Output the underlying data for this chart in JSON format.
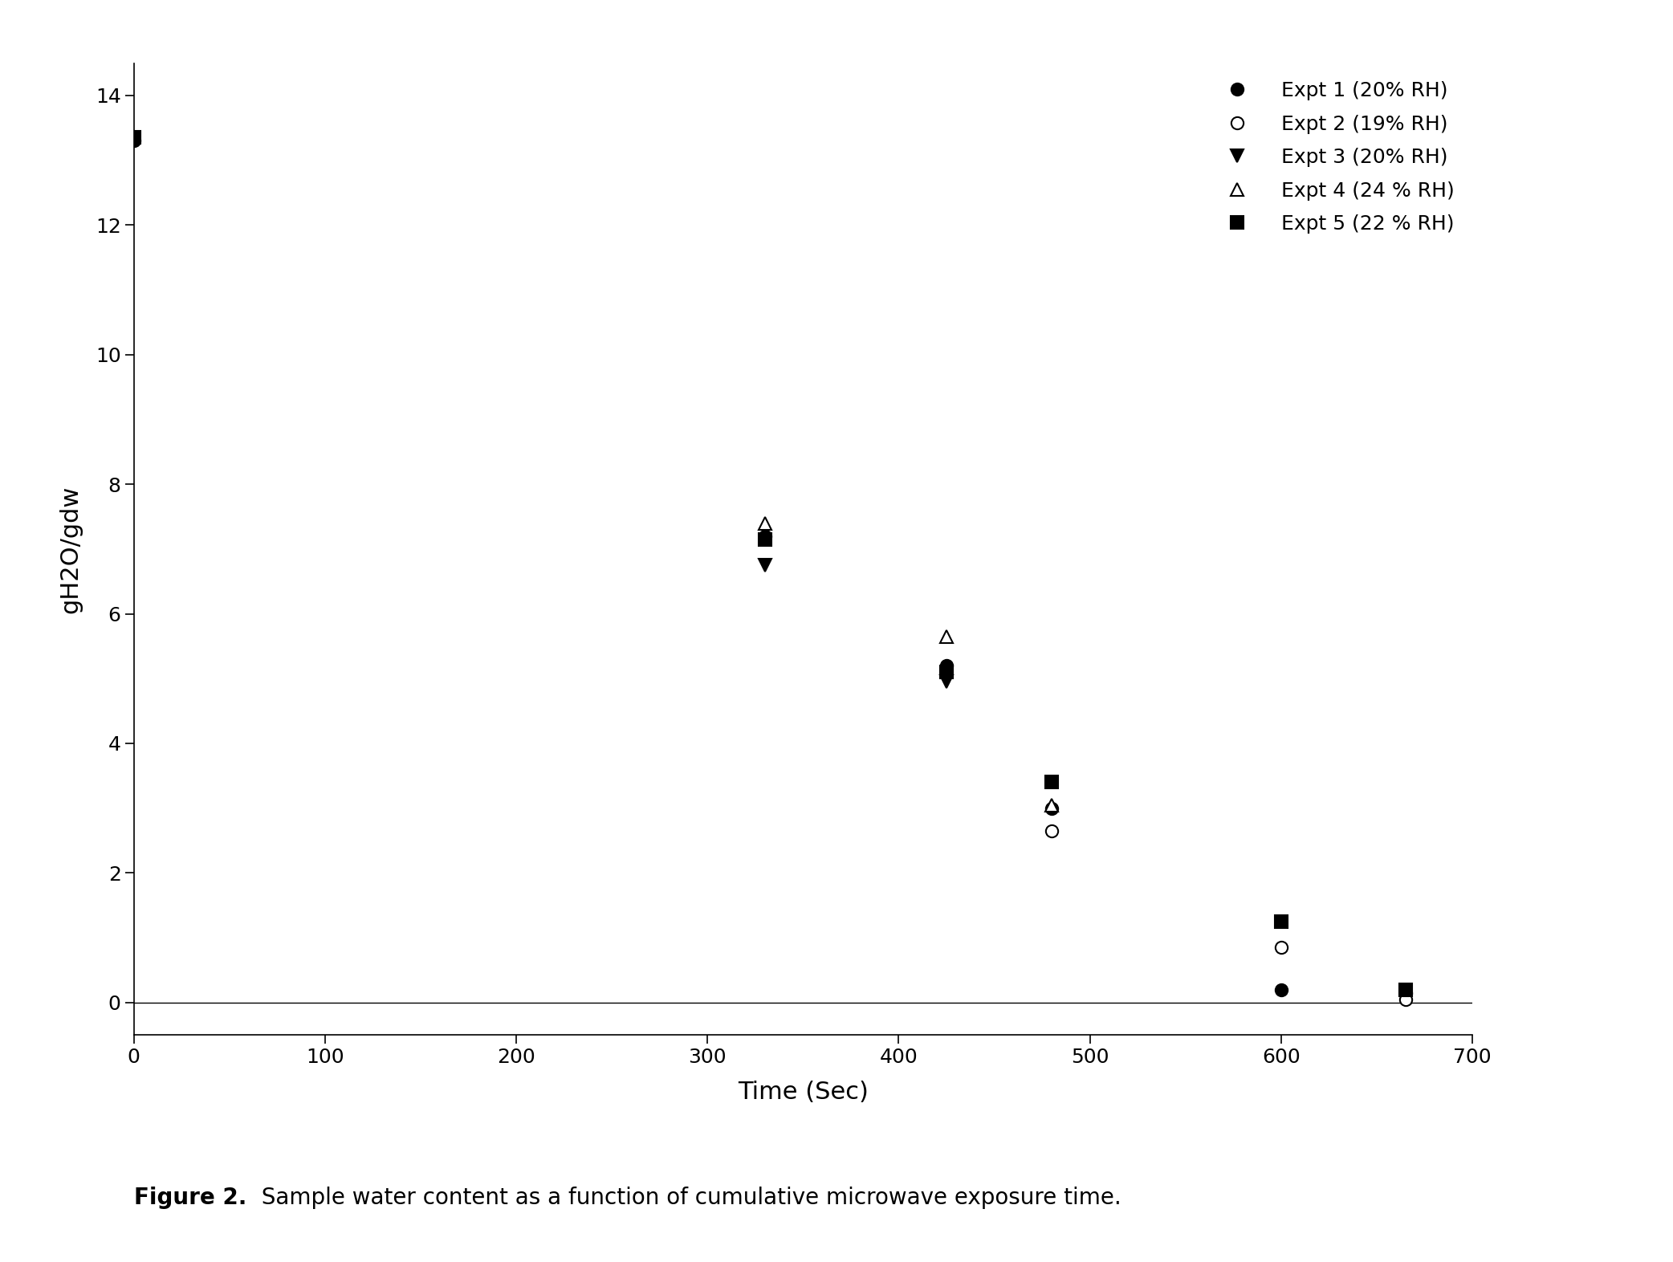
{
  "title": "",
  "xlabel": "Time (Sec)",
  "ylabel": "gH2O/gdw",
  "caption_bold": "Figure 2.",
  "caption_normal": "  Sample water content as a function of cumulative microwave exposure time.",
  "xlim": [
    0,
    700
  ],
  "ylim": [
    -0.5,
    14.5
  ],
  "yticks": [
    0,
    2,
    4,
    6,
    8,
    10,
    12,
    14
  ],
  "xticks": [
    0,
    100,
    200,
    300,
    400,
    500,
    600,
    700
  ],
  "series": [
    {
      "label": "Expt 1 (20% RH)",
      "marker": "o",
      "mfc": "black",
      "mec": "black",
      "data": [
        [
          0,
          13.3
        ],
        [
          330,
          7.2
        ],
        [
          425,
          5.2
        ],
        [
          480,
          3.0
        ],
        [
          600,
          0.2
        ],
        [
          665,
          0.15
        ]
      ]
    },
    {
      "label": "Expt 2 (19% RH)",
      "marker": "o",
      "mfc": "white",
      "mec": "black",
      "data": [
        [
          480,
          2.65
        ],
        [
          600,
          0.85
        ],
        [
          665,
          0.05
        ]
      ]
    },
    {
      "label": "Expt 3 (20% RH)",
      "marker": "v",
      "mfc": "black",
      "mec": "black",
      "data": [
        [
          330,
          6.75
        ],
        [
          425,
          4.95
        ]
      ]
    },
    {
      "label": "Expt 4 (24 % RH)",
      "marker": "^",
      "mfc": "white",
      "mec": "black",
      "data": [
        [
          330,
          7.4
        ],
        [
          425,
          5.65
        ],
        [
          480,
          3.05
        ]
      ]
    },
    {
      "label": "Expt 5 (22 % RH)",
      "marker": "s",
      "mfc": "black",
      "mec": "black",
      "data": [
        [
          0,
          13.35
        ],
        [
          330,
          7.15
        ],
        [
          425,
          5.1
        ],
        [
          480,
          3.4
        ],
        [
          600,
          1.25
        ],
        [
          665,
          0.2
        ]
      ]
    }
  ],
  "background_color": "#ffffff",
  "legend_loc": "upper right",
  "markersize": 11,
  "figsize": [
    20.84,
    15.72
  ],
  "dpi": 100,
  "tick_fontsize": 18,
  "axis_label_fontsize": 22,
  "legend_fontsize": 18,
  "caption_fontsize": 20
}
